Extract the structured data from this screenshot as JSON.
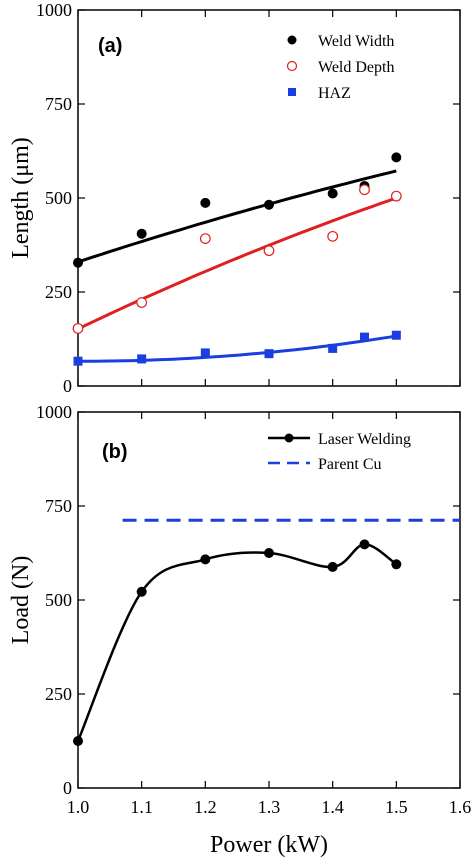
{
  "chart_data": [
    {
      "type": "scatter",
      "panel_label": "(a)",
      "ylabel": "Length (μm)",
      "xlim": [
        1.0,
        1.6
      ],
      "ylim": [
        0,
        1000
      ],
      "yticks": [
        "0",
        "250",
        "500",
        "750",
        "1000"
      ],
      "legend_position": "top-right",
      "series": [
        {
          "name": "Weld Width",
          "marker": "filled-circle",
          "color": "#000000",
          "x": [
            1.0,
            1.1,
            1.2,
            1.3,
            1.4,
            1.45,
            1.5
          ],
          "y": [
            328,
            405,
            487,
            482,
            512,
            532,
            608
          ],
          "fit": {
            "x0": 1.0,
            "y0": 330,
            "x1": 1.5,
            "y1": 572,
            "ymid": 460
          }
        },
        {
          "name": "Weld Depth",
          "marker": "open-circle",
          "color": "#e02020",
          "x": [
            1.0,
            1.1,
            1.2,
            1.3,
            1.4,
            1.45,
            1.5
          ],
          "y": [
            153,
            222,
            392,
            360,
            398,
            522,
            505
          ],
          "fit": {
            "x0": 1.0,
            "y0": 152,
            "x1": 1.5,
            "y1": 500,
            "ymid": 340
          }
        },
        {
          "name": "HAZ",
          "marker": "filled-square",
          "color": "#1a3fe0",
          "x": [
            1.0,
            1.1,
            1.2,
            1.3,
            1.4,
            1.45,
            1.5
          ],
          "y": [
            66,
            72,
            88,
            86,
            100,
            130,
            135
          ],
          "fit": {
            "x0": 1.0,
            "y0": 66,
            "x1": 1.5,
            "y1": 133,
            "ymid": 82
          }
        }
      ]
    },
    {
      "type": "line",
      "panel_label": "(b)",
      "xlabel": "Power (kW)",
      "ylabel": "Load  (N)",
      "xlim": [
        1.0,
        1.6
      ],
      "ylim": [
        0,
        1000
      ],
      "xticks": [
        "1.0",
        "1.1",
        "1.2",
        "1.3",
        "1.4",
        "1.5",
        "1.6"
      ],
      "yticks": [
        "0",
        "250",
        "500",
        "750",
        "1000"
      ],
      "legend_position": "top-right",
      "series": [
        {
          "name": "Laser Welding",
          "marker": "filled-circle",
          "color": "#000000",
          "x": [
            1.0,
            1.1,
            1.2,
            1.3,
            1.4,
            1.45,
            1.5
          ],
          "y": [
            125,
            522,
            608,
            625,
            588,
            648,
            595
          ]
        },
        {
          "name": "Parent Cu",
          "style": "dashed",
          "color": "#1a3fe0",
          "y_constant": 712
        }
      ]
    }
  ]
}
